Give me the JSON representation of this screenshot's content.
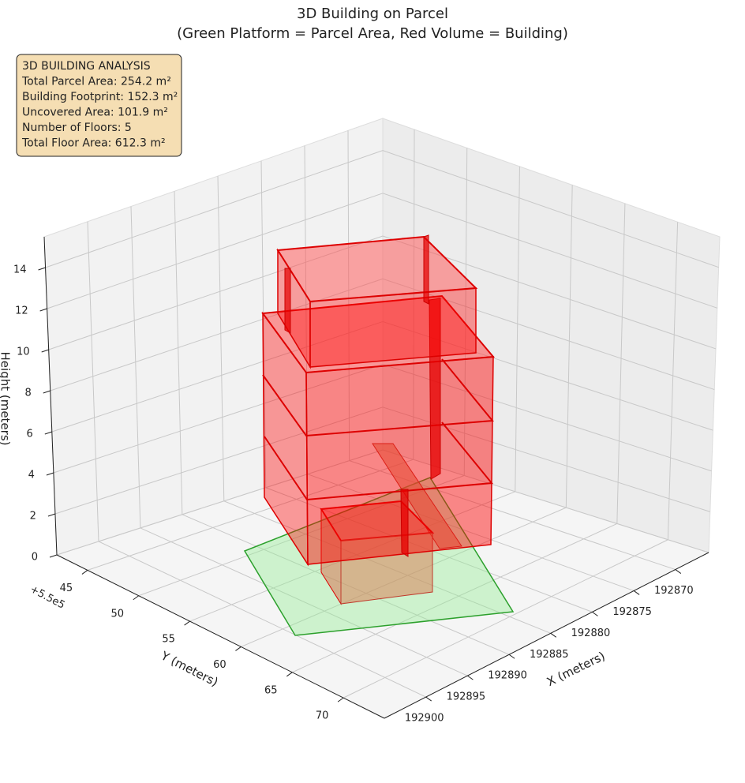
{
  "chart_data": {
    "type": "3d",
    "title": "3D Building on Parcel",
    "subtitle": "(Green Platform = Parcel Area, Red Volume = Building)",
    "annotation": [
      "3D BUILDING ANALYSIS",
      "Total Parcel Area: 254.2 m²",
      "Building Footprint: 152.3 m²",
      "Uncovered Area: 101.9 m²",
      "Number of Floors: 5",
      "Total Floor Area: 612.3 m²"
    ],
    "xlabel": "X (meters)",
    "ylabel": "Y (meters)",
    "zlabel": "Height (meters)",
    "y_offset": "+5.5e5",
    "xlim": [
      192866,
      192905
    ],
    "xticks": [
      192870,
      192875,
      192880,
      192885,
      192890,
      192895,
      192900
    ],
    "ylim": [
      42,
      74
    ],
    "yticks": [
      45,
      50,
      55,
      60,
      65,
      70
    ],
    "zlim": [
      0,
      15.5
    ],
    "zticks": [
      0,
      2,
      4,
      6,
      8,
      10,
      12,
      14
    ],
    "grid": true
  }
}
